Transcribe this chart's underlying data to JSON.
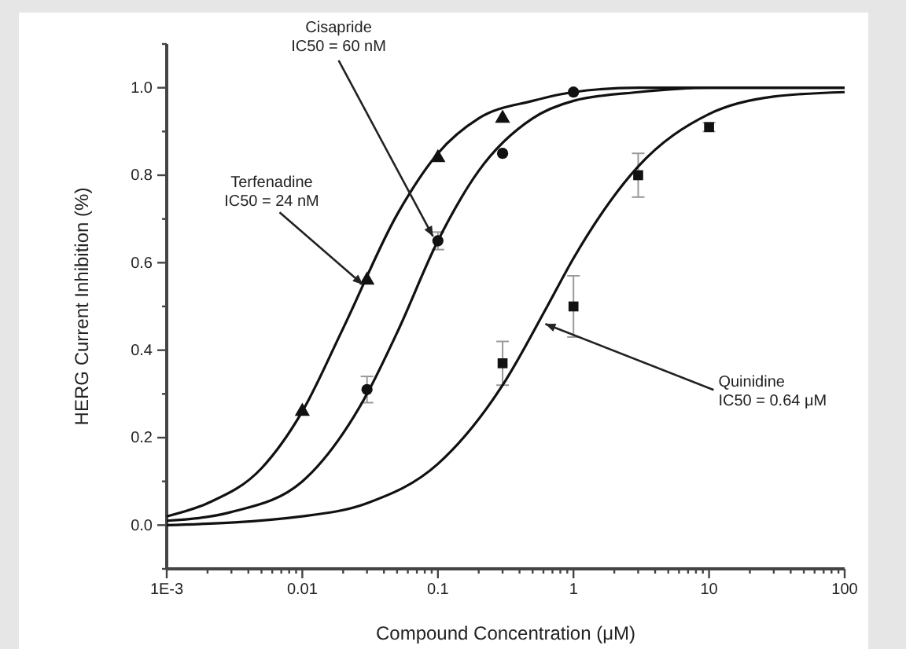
{
  "chart_data": {
    "type": "scatter",
    "xlabel": "Compound Concentration (μM)",
    "ylabel": "HERG Current Inhibition (%)",
    "log": "x",
    "xlim": [
      0.001,
      100
    ],
    "ylim": [
      -0.1,
      1.1
    ],
    "xticks": [
      {
        "value": 0.001,
        "label": "1E-3"
      },
      {
        "value": 0.002,
        "label": null
      },
      {
        "value": 0.003,
        "label": null
      },
      {
        "value": 0.004,
        "label": null
      },
      {
        "value": 0.005,
        "label": null
      },
      {
        "value": 0.006,
        "label": null
      },
      {
        "value": 0.007,
        "label": null
      },
      {
        "value": 0.008,
        "label": null
      },
      {
        "value": 0.009,
        "label": null
      },
      0.01,
      {
        "value": 0.02,
        "label": null
      },
      {
        "value": 0.03,
        "label": null
      },
      {
        "value": 0.04,
        "label": null
      },
      {
        "value": 0.05,
        "label": null
      },
      {
        "value": 0.06,
        "label": null
      },
      {
        "value": 0.07,
        "label": null
      },
      {
        "value": 0.08,
        "label": null
      },
      {
        "value": 0.09,
        "label": null
      },
      0.1,
      {
        "value": 0.2,
        "label": null
      },
      {
        "value": 0.3,
        "label": null
      },
      {
        "value": 0.4,
        "label": null
      },
      {
        "value": 0.5,
        "label": null
      },
      {
        "value": 0.6,
        "label": null
      },
      {
        "value": 0.7,
        "label": null
      },
      {
        "value": 0.8,
        "label": null
      },
      {
        "value": 0.9,
        "label": null
      },
      1,
      {
        "value": 2,
        "label": null
      },
      {
        "value": 3,
        "label": null
      },
      {
        "value": 4,
        "label": null
      },
      {
        "value": 5,
        "label": null
      },
      {
        "value": 6,
        "label": null
      },
      {
        "value": 7,
        "label": null
      },
      {
        "value": 8,
        "label": null
      },
      {
        "value": 9,
        "label": null
      },
      10,
      {
        "value": 20,
        "label": null
      },
      {
        "value": 30,
        "label": null
      },
      {
        "value": 40,
        "label": null
      },
      {
        "value": 50,
        "label": null
      },
      {
        "value": 60,
        "label": null
      },
      {
        "value": 70,
        "label": null
      },
      {
        "value": 80,
        "label": null
      },
      {
        "value": 90,
        "label": null
      },
      100
    ],
    "yticks": [
      {
        "value": -0.1,
        "label": null
      },
      {
        "value": 0,
        "label": "0.0"
      },
      {
        "value": 0.1,
        "label": null
      },
      {
        "value": 0.2,
        "label": "0.2"
      },
      {
        "value": 0.3,
        "label": null
      },
      {
        "value": 0.4,
        "label": "0.4"
      },
      {
        "value": 0.5,
        "label": null
      },
      {
        "value": 0.6,
        "label": "0.6"
      },
      {
        "value": 0.7,
        "label": null
      },
      {
        "value": 0.8,
        "label": "0.8"
      },
      {
        "value": 0.9,
        "label": null
      },
      {
        "value": 1.0,
        "label": "1.0"
      },
      {
        "value": 1.1,
        "label": null
      }
    ],
    "grid": false,
    "series": [
      {
        "marker": "triangle",
        "color": "#111111",
        "x": [
          0.01,
          0.03,
          0.1,
          0.3
        ],
        "values": [
          0.26,
          0.56,
          0.84,
          0.93
        ]
      },
      {
        "marker": "circle",
        "color": "#111111",
        "x": [
          0.03,
          0.1,
          0.3,
          1
        ],
        "values": [
          0.31,
          0.65,
          0.85,
          0.99
        ],
        "errors": [
          0.03,
          0.02,
          null,
          null
        ]
      },
      {
        "marker": "square",
        "color": "#111111",
        "x": [
          0.3,
          1,
          3,
          10
        ],
        "values": [
          0.37,
          0.5,
          0.8,
          0.91
        ],
        "errors": [
          0.05,
          0.07,
          0.05,
          0.01
        ]
      },
      {
        "type": "line",
        "color": "#111111",
        "x": [
          0.001,
          0.002,
          0.005,
          0.01,
          0.02,
          0.05,
          0.1,
          0.2,
          0.5,
          1,
          3,
          10,
          100
        ],
        "values": [
          0.02,
          0.05,
          0.13,
          0.26,
          0.45,
          0.71,
          0.85,
          0.93,
          0.97,
          0.99,
          1.0,
          1.0,
          1.0
        ]
      },
      {
        "type": "line",
        "color": "#111111",
        "x": [
          0.001,
          0.003,
          0.01,
          0.02,
          0.03,
          0.05,
          0.1,
          0.2,
          0.5,
          1,
          3,
          10,
          100
        ],
        "values": [
          0.01,
          0.03,
          0.1,
          0.21,
          0.3,
          0.44,
          0.65,
          0.81,
          0.93,
          0.97,
          0.99,
          1.0,
          1.0
        ]
      },
      {
        "type": "line",
        "color": "#111111",
        "x": [
          0.001,
          0.01,
          0.03,
          0.1,
          0.3,
          0.64,
          1,
          3,
          10,
          30,
          100
        ],
        "values": [
          0.0,
          0.02,
          0.05,
          0.14,
          0.32,
          0.5,
          0.61,
          0.82,
          0.94,
          0.98,
          0.99
        ]
      }
    ],
    "annotations": [
      {
        "text": "Terfenadine\nIC50 = 24 nM",
        "x": 0.028,
        "y": 0.55
      },
      {
        "text": "Cisapride\nIC50 = 60 nM",
        "x": 0.092,
        "y": 0.66
      },
      {
        "text": "Quinidine\nIC50 = 0.64 μM",
        "x": 0.62,
        "y": 0.46
      }
    ]
  }
}
